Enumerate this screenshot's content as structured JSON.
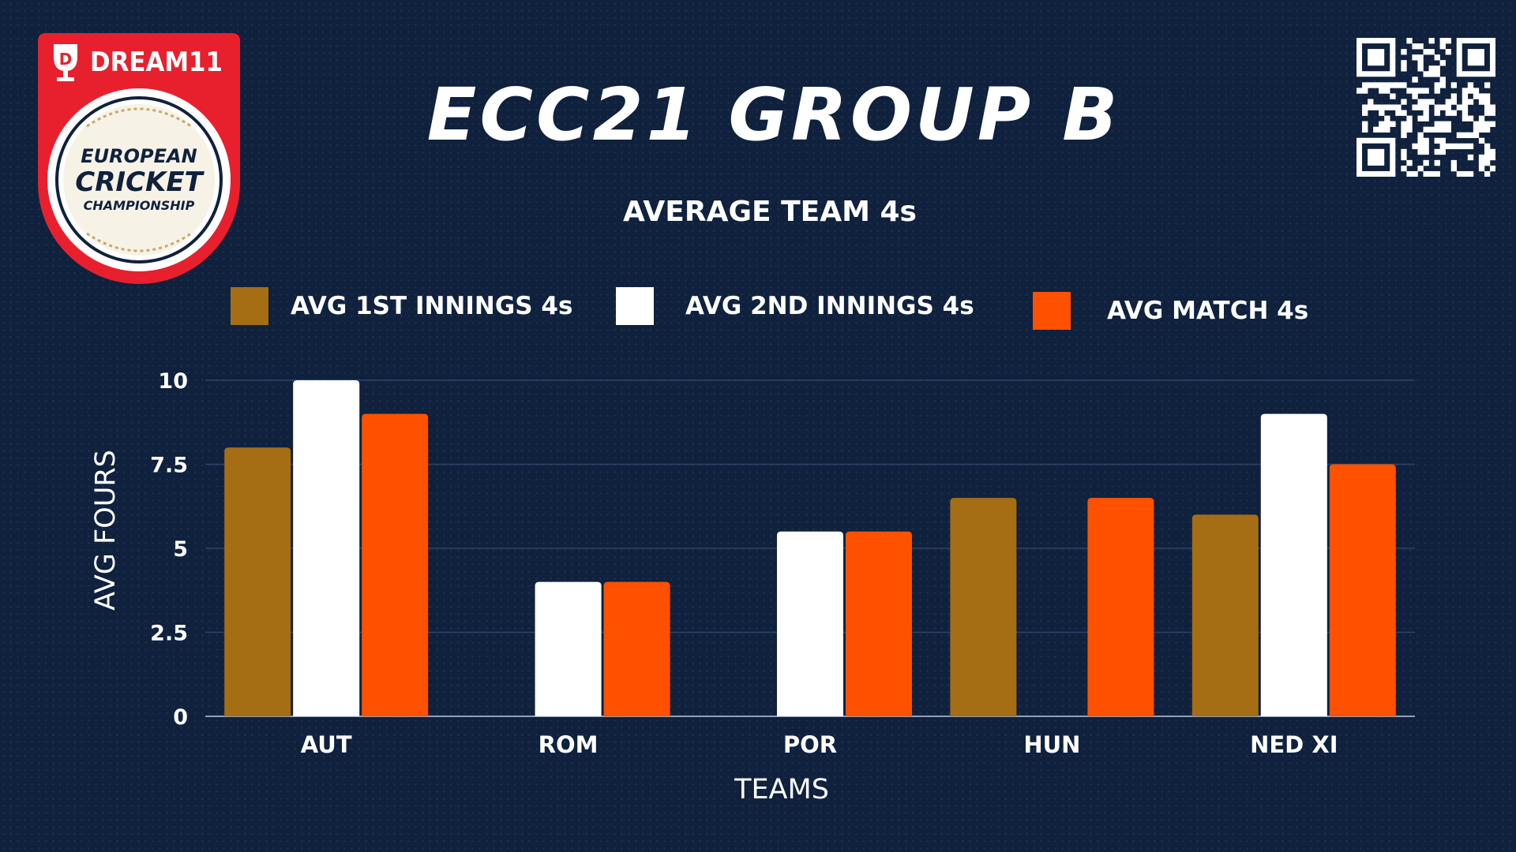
{
  "header": {
    "title": "ECC21 GROUP B",
    "subtitle": "AVERAGE TEAM 4s"
  },
  "logo": {
    "brand": "DREAM11",
    "line1": "EUROPEAN",
    "line2": "CRICKET",
    "line3": "CHAMPIONSHIP",
    "icon": "dream11-championship-logo"
  },
  "qr": {
    "icon": "qr-code-icon"
  },
  "colors": {
    "background": "#0f213d",
    "first_innings": "#a56d14",
    "second_innings": "#ffffff",
    "match": "#ff5100",
    "logo_red": "#e8202e"
  },
  "chart_data": {
    "type": "bar",
    "title": "AVERAGE TEAM 4s",
    "xlabel": "TEAMS",
    "ylabel": "AVG FOURS",
    "categories": [
      "AUT",
      "ROM",
      "POR",
      "HUN",
      "NED XI"
    ],
    "ylim": [
      0,
      10
    ],
    "yticks": [
      0,
      2.5,
      5,
      7.5,
      10
    ],
    "ytick_labels": [
      "0",
      "2.5",
      "5",
      "7.5",
      "10"
    ],
    "grid": true,
    "legend_position": "top",
    "series": [
      {
        "name": "AVG 1ST INNINGS 4s",
        "color": "#a56d14",
        "values": [
          8,
          0,
          0,
          6.5,
          6
        ]
      },
      {
        "name": "AVG 2ND INNINGS 4s",
        "color": "#ffffff",
        "values": [
          10,
          4,
          5.5,
          0,
          9
        ]
      },
      {
        "name": "AVG MATCH 4s",
        "color": "#ff5100",
        "values": [
          9,
          4,
          5.5,
          6.5,
          7.5
        ]
      }
    ]
  }
}
